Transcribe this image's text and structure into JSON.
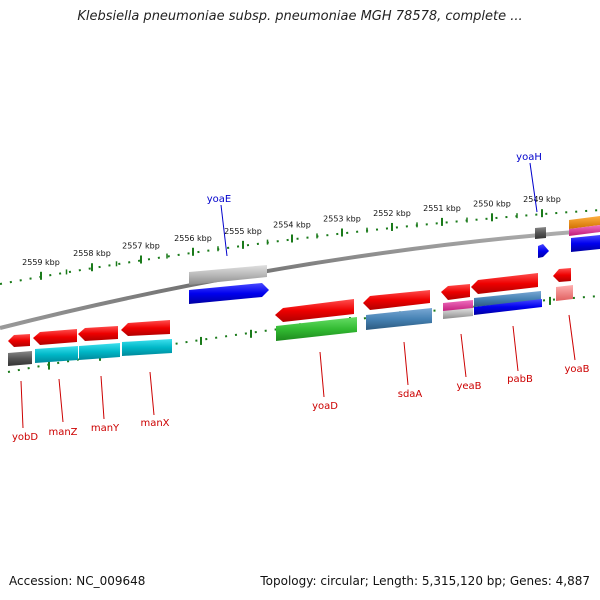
{
  "title": "Klebsiella pneumoniae subsp. pneumoniae MGH 78578, complete ...",
  "footer": {
    "accession": "Accession: NC_009648",
    "summary": "Topology: circular; Length: 5,315,120 bp; Genes: 4,887"
  },
  "ruler_ticks": [
    "2559 kbp",
    "2558 kbp",
    "2557 kbp",
    "2556 kbp",
    "2555 kbp",
    "2554 kbp",
    "2553 kbp",
    "2552 kbp",
    "2551 kbp",
    "2550 kbp",
    "2549 kbp"
  ],
  "gene_labels_top": [
    {
      "name": "yoaE",
      "color": "#0000cc"
    },
    {
      "name": "yoaH",
      "color": "#0000cc"
    }
  ],
  "gene_labels_bottom": [
    {
      "name": "yobD",
      "color": "#cc0000"
    },
    {
      "name": "manZ",
      "color": "#cc0000"
    },
    {
      "name": "manY",
      "color": "#cc0000"
    },
    {
      "name": "manX",
      "color": "#cc0000"
    },
    {
      "name": "yoaD",
      "color": "#cc0000"
    },
    {
      "name": "sdaA",
      "color": "#cc0000"
    },
    {
      "name": "yeaB",
      "color": "#cc0000"
    },
    {
      "name": "pabB",
      "color": "#cc0000"
    },
    {
      "name": "yoaB",
      "color": "#cc0000"
    }
  ],
  "colors": {
    "backbone": "#7a7a7a",
    "tick": "#1a7a1a",
    "gene_red": "#ee0000",
    "gene_blue": "#0000ee",
    "gene_cyan": "#00b8c8",
    "gene_green": "#33bb33",
    "gene_steel": "#4682b4",
    "gene_gray": "#b8b8b8",
    "gene_dark": "#555555",
    "gene_orange": "#f08c00",
    "gene_magenta": "#e0359a",
    "gene_pink": "#f08080"
  }
}
